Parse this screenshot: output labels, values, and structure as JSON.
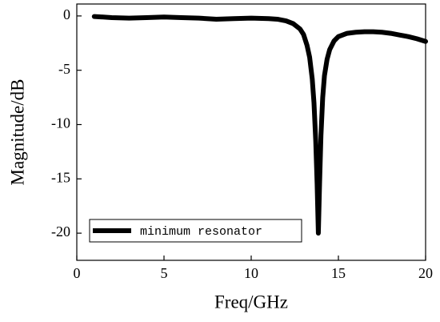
{
  "chart_data": {
    "type": "line",
    "x_label": "Freq/GHz",
    "y_label": "Magnitude/dB",
    "xlim": [
      0,
      20
    ],
    "xticks": [
      0,
      5,
      10,
      15,
      20
    ],
    "ylim": [
      -22.5,
      1.1
    ],
    "yticks": [
      0,
      -5,
      -10,
      -15,
      -20
    ],
    "legend": "lower left",
    "grid": false,
    "series": [
      {
        "name": "minimum resonator",
        "color": "#000000",
        "x": [
          1,
          2,
          3,
          4,
          5,
          6,
          7,
          8,
          9,
          10,
          11,
          11.5,
          12,
          12.4,
          12.8,
          13.0,
          13.2,
          13.35,
          13.5,
          13.6,
          13.7,
          13.78,
          13.85,
          13.92,
          14.0,
          14.1,
          14.2,
          14.35,
          14.5,
          14.75,
          15.0,
          15.5,
          16.0,
          16.5,
          17.0,
          17.5,
          18.0,
          18.5,
          19.0,
          19.5,
          20.0
        ],
        "values": [
          -0.05,
          -0.15,
          -0.2,
          -0.15,
          -0.1,
          -0.15,
          -0.2,
          -0.3,
          -0.25,
          -0.2,
          -0.25,
          -0.3,
          -0.45,
          -0.7,
          -1.2,
          -1.7,
          -2.7,
          -3.8,
          -5.8,
          -8.0,
          -11.5,
          -15.5,
          -20.0,
          -15.5,
          -11.0,
          -7.5,
          -5.5,
          -4.0,
          -3.1,
          -2.3,
          -1.9,
          -1.6,
          -1.5,
          -1.45,
          -1.45,
          -1.5,
          -1.6,
          -1.75,
          -1.9,
          -2.1,
          -2.35
        ]
      }
    ]
  }
}
